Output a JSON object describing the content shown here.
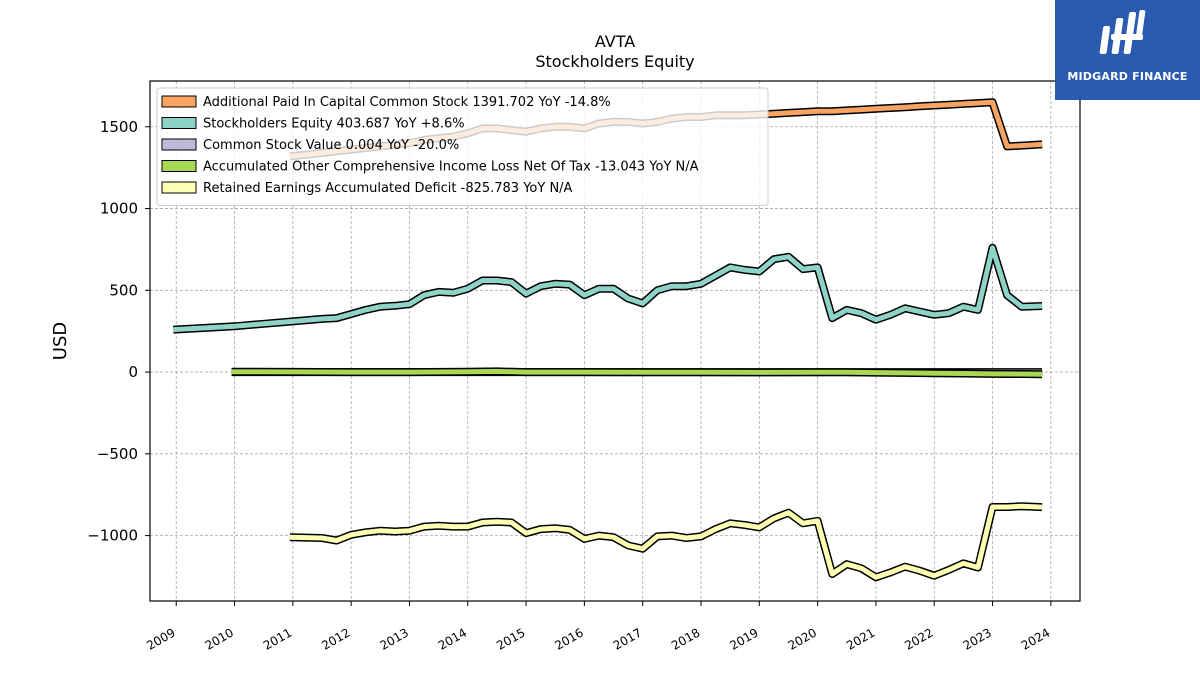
{
  "logo": {
    "name": "MIDGARD FINANCE"
  },
  "chart_data": {
    "type": "line",
    "title": "AVTA",
    "subtitle": "Stockholders  Equity",
    "ylabel": "USD",
    "xlim": [
      2008.55,
      2024.5
    ],
    "ylim": [
      -1400,
      1780
    ],
    "yticks": [
      {
        "value": 1500,
        "label": "1500"
      },
      {
        "value": 1000,
        "label": "1000"
      },
      {
        "value": 500,
        "label": "500"
      },
      {
        "value": 0,
        "label": "0"
      },
      {
        "value": -500,
        "label": "−500"
      },
      {
        "value": -1000,
        "label": "−1000"
      }
    ],
    "xticks": [
      {
        "value": 2009,
        "label": "2009"
      },
      {
        "value": 2010,
        "label": "2010"
      },
      {
        "value": 2011,
        "label": "2011"
      },
      {
        "value": 2012,
        "label": "2012"
      },
      {
        "value": 2013,
        "label": "2013"
      },
      {
        "value": 2014,
        "label": "2014"
      },
      {
        "value": 2015,
        "label": "2015"
      },
      {
        "value": 2016,
        "label": "2016"
      },
      {
        "value": 2017,
        "label": "2017"
      },
      {
        "value": 2018,
        "label": "2018"
      },
      {
        "value": 2019,
        "label": "2019"
      },
      {
        "value": 2020,
        "label": "2020"
      },
      {
        "value": 2021,
        "label": "2021"
      },
      {
        "value": 2022,
        "label": "2022"
      },
      {
        "value": 2023,
        "label": "2023"
      },
      {
        "value": 2024,
        "label": "2024"
      }
    ],
    "grid": true,
    "legend_position": "top-left",
    "series": [
      {
        "name": "Additional Paid In Capital Common Stock  1391.702 YoY -14.8%",
        "color": "#f7a462",
        "x": [
          2010.95,
          2011.25,
          2011.5,
          2011.75,
          2012.0,
          2012.25,
          2012.5,
          2012.75,
          2013.0,
          2013.25,
          2013.5,
          2013.75,
          2014.0,
          2014.25,
          2014.5,
          2014.75,
          2015.0,
          2015.25,
          2015.5,
          2015.75,
          2016.0,
          2016.25,
          2016.5,
          2016.75,
          2017.0,
          2017.25,
          2017.5,
          2017.75,
          2018.0,
          2018.25,
          2018.5,
          2018.75,
          2019.0,
          2019.25,
          2019.5,
          2019.75,
          2020.0,
          2020.25,
          2020.5,
          2020.75,
          2021.0,
          2021.25,
          2021.5,
          2021.75,
          2022.0,
          2022.25,
          2022.5,
          2022.75,
          2023.0,
          2023.25,
          2023.5,
          2023.85
        ],
        "values": [
          1320,
          1330,
          1340,
          1350,
          1360,
          1370,
          1380,
          1390,
          1400,
          1420,
          1430,
          1440,
          1460,
          1490,
          1490,
          1480,
          1470,
          1490,
          1500,
          1500,
          1490,
          1520,
          1530,
          1530,
          1520,
          1530,
          1550,
          1560,
          1560,
          1570,
          1570,
          1570,
          1575,
          1580,
          1585,
          1590,
          1595,
          1595,
          1600,
          1605,
          1610,
          1615,
          1620,
          1625,
          1630,
          1635,
          1640,
          1645,
          1650,
          1380,
          1385,
          1392
        ]
      },
      {
        "name": "Stockholders Equity  403.687 YoY +8.6%",
        "color": "#8dd3c7",
        "x": [
          2008.95,
          2009.5,
          2010.0,
          2010.5,
          2011.0,
          2011.5,
          2011.75,
          2012.0,
          2012.25,
          2012.5,
          2012.75,
          2013.0,
          2013.25,
          2013.5,
          2013.75,
          2014.0,
          2014.25,
          2014.5,
          2014.75,
          2015.0,
          2015.25,
          2015.5,
          2015.75,
          2016.0,
          2016.25,
          2016.5,
          2016.75,
          2017.0,
          2017.25,
          2017.5,
          2017.75,
          2018.0,
          2018.25,
          2018.5,
          2018.75,
          2019.0,
          2019.25,
          2019.5,
          2019.75,
          2020.0,
          2020.25,
          2020.5,
          2020.75,
          2021.0,
          2021.25,
          2021.5,
          2021.75,
          2022.0,
          2022.25,
          2022.5,
          2022.75,
          2023.0,
          2023.25,
          2023.5,
          2023.85
        ],
        "values": [
          260,
          270,
          280,
          295,
          310,
          325,
          330,
          355,
          380,
          400,
          405,
          415,
          470,
          490,
          485,
          510,
          560,
          560,
          550,
          480,
          525,
          540,
          535,
          470,
          510,
          510,
          450,
          420,
          500,
          525,
          525,
          540,
          590,
          640,
          625,
          615,
          690,
          705,
          630,
          640,
          330,
          380,
          360,
          320,
          350,
          390,
          370,
          350,
          360,
          400,
          380,
          760,
          470,
          400,
          404
        ]
      },
      {
        "name": "Common Stock Value  0.004 YoY -20.0%",
        "color": "#bebada",
        "x": [
          2009.95,
          2023.85
        ],
        "values": [
          0.005,
          0.004
        ]
      },
      {
        "name": "Accumulated Other Comprehensive Income Loss Net Of Tax  -13.043 YoY N/A",
        "color": "#a6d854",
        "x": [
          2009.95,
          2011.0,
          2012.0,
          2013.0,
          2014.0,
          2014.5,
          2015.0,
          2016.0,
          2017.0,
          2018.0,
          2019.0,
          2020.0,
          2020.5,
          2021.0,
          2021.5,
          2022.0,
          2022.5,
          2023.0,
          2023.5,
          2023.85
        ],
        "values": [
          2,
          1,
          0,
          0,
          2,
          4,
          0,
          0,
          -1,
          -1,
          -2,
          -1,
          -1,
          -3,
          -5,
          -7,
          -9,
          -11,
          -12,
          -13
        ]
      },
      {
        "name": "Retained Earnings Accumulated Deficit  -825.783 YoY N/A",
        "color": "#ffffb3",
        "x": [
          2010.95,
          2011.5,
          2011.75,
          2012.0,
          2012.25,
          2012.5,
          2012.75,
          2013.0,
          2013.25,
          2013.5,
          2013.75,
          2014.0,
          2014.25,
          2014.5,
          2014.75,
          2015.0,
          2015.25,
          2015.5,
          2015.75,
          2016.0,
          2016.25,
          2016.5,
          2016.75,
          2017.0,
          2017.25,
          2017.5,
          2017.75,
          2018.0,
          2018.25,
          2018.5,
          2018.75,
          2019.0,
          2019.25,
          2019.5,
          2019.75,
          2020.0,
          2020.25,
          2020.5,
          2020.75,
          2021.0,
          2021.25,
          2021.5,
          2021.75,
          2022.0,
          2022.25,
          2022.5,
          2022.75,
          2023.0,
          2023.25,
          2023.5,
          2023.85
        ],
        "values": [
          -1010,
          -1015,
          -1030,
          -995,
          -980,
          -970,
          -975,
          -970,
          -945,
          -940,
          -945,
          -945,
          -920,
          -915,
          -920,
          -985,
          -960,
          -955,
          -965,
          -1020,
          -1000,
          -1010,
          -1060,
          -1080,
          -1005,
          -1000,
          -1015,
          -1005,
          -960,
          -925,
          -935,
          -950,
          -895,
          -860,
          -925,
          -910,
          -1235,
          -1175,
          -1200,
          -1255,
          -1225,
          -1190,
          -1215,
          -1245,
          -1210,
          -1170,
          -1195,
          -825,
          -825,
          -820,
          -826
        ]
      }
    ]
  }
}
